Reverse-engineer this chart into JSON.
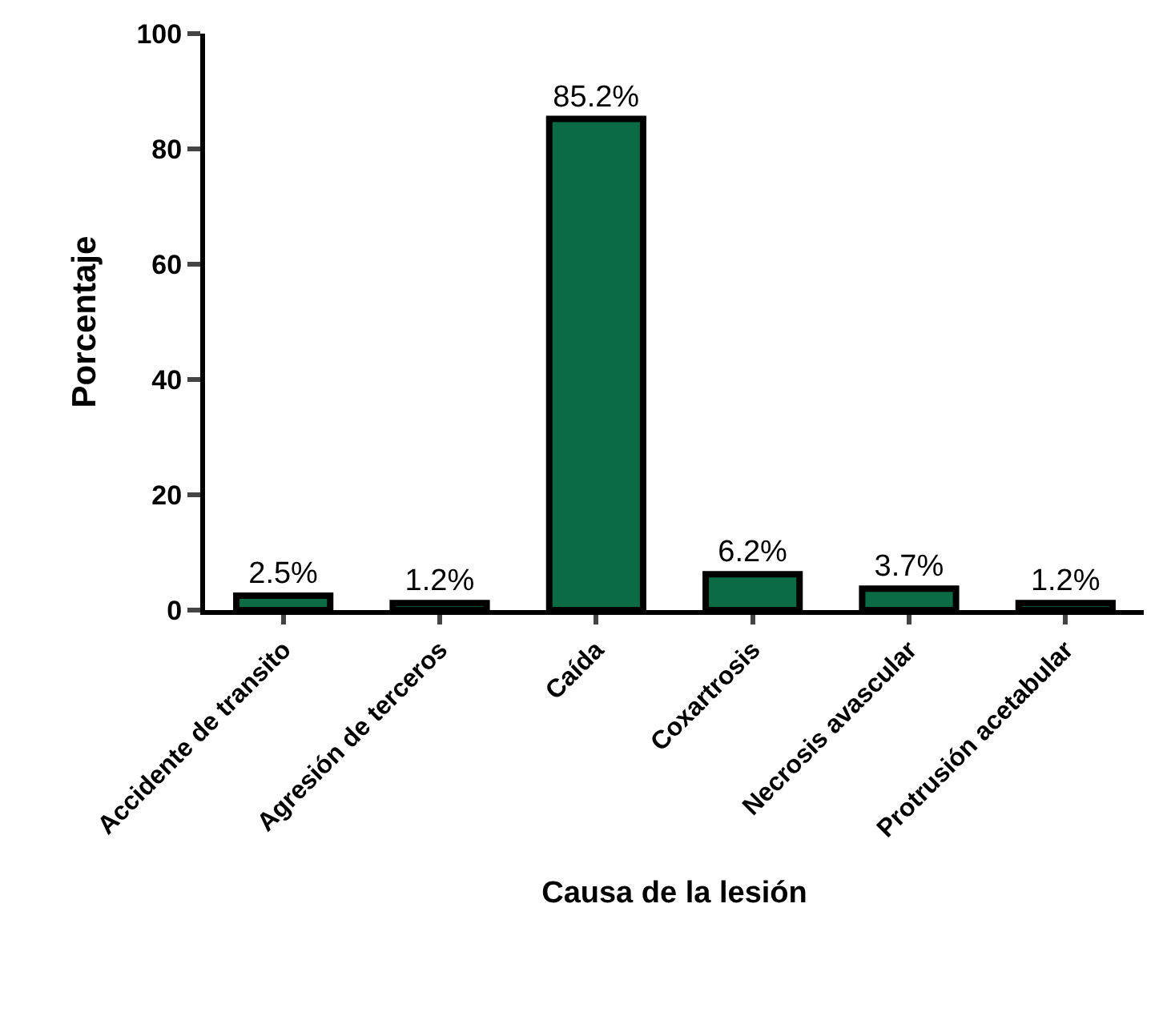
{
  "chart_data": {
    "type": "bar",
    "xlabel": "Causa de la lesión",
    "ylabel": "Porcentaje",
    "categories": [
      "Accidente de transito",
      "Agresión de terceros",
      "Caída",
      "Coxartrosis",
      "Necrosis avascular",
      "Protrusión acetabular"
    ],
    "values": [
      2.5,
      1.2,
      85.2,
      6.2,
      3.7,
      1.2
    ],
    "value_labels": [
      "2.5%",
      "1.2%",
      "85.2%",
      "6.2%",
      "3.7%",
      "1.2%"
    ],
    "color": "#0a6b45",
    "ylim": [
      0,
      100
    ],
    "yticks": [
      0,
      20,
      40,
      60,
      80,
      100
    ]
  }
}
